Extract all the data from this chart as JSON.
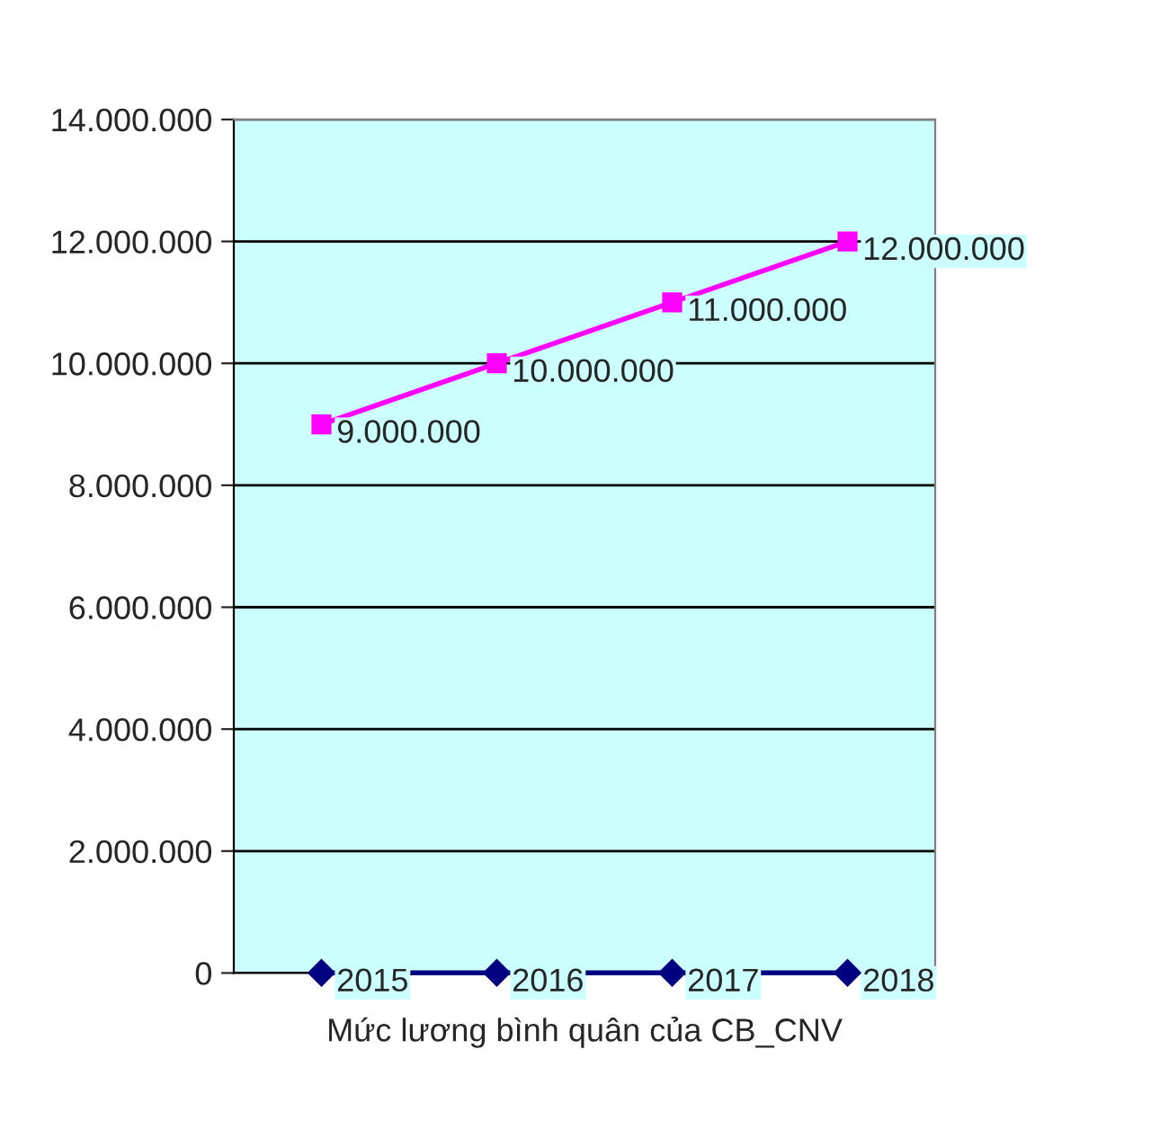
{
  "chart_data": {
    "type": "line",
    "xlabel": "Mức lương bình quân của CB_CNV",
    "categories": [
      null,
      null,
      null,
      null
    ],
    "series": [
      {
        "color": "#000080",
        "marker": "diamond",
        "values": [
          2015,
          2016,
          2017,
          2018
        ],
        "value_labels": [
          "2015",
          "2016",
          "2017",
          "2018"
        ]
      },
      {
        "color": "#ff00ff",
        "marker": "square",
        "values": [
          9000000,
          10000000,
          11000000,
          12000000
        ],
        "value_labels": [
          "9.000.000",
          "10.000.000",
          "11.000.000",
          "12.000.000"
        ]
      }
    ],
    "ylim": [
      0,
      14000000
    ],
    "yticks": [
      {
        "value": 0,
        "label": "0"
      },
      {
        "value": 2000000,
        "label": "2.000.000"
      },
      {
        "value": 4000000,
        "label": "4.000.000"
      },
      {
        "value": 6000000,
        "label": "6.000.000"
      },
      {
        "value": 8000000,
        "label": "8.000.000"
      },
      {
        "value": 10000000,
        "label": "10.000.000"
      },
      {
        "value": 12000000,
        "label": "12.000.000"
      },
      {
        "value": 14000000,
        "label": "14.000.000"
      }
    ],
    "grid": "y",
    "tick_labels": "y"
  }
}
